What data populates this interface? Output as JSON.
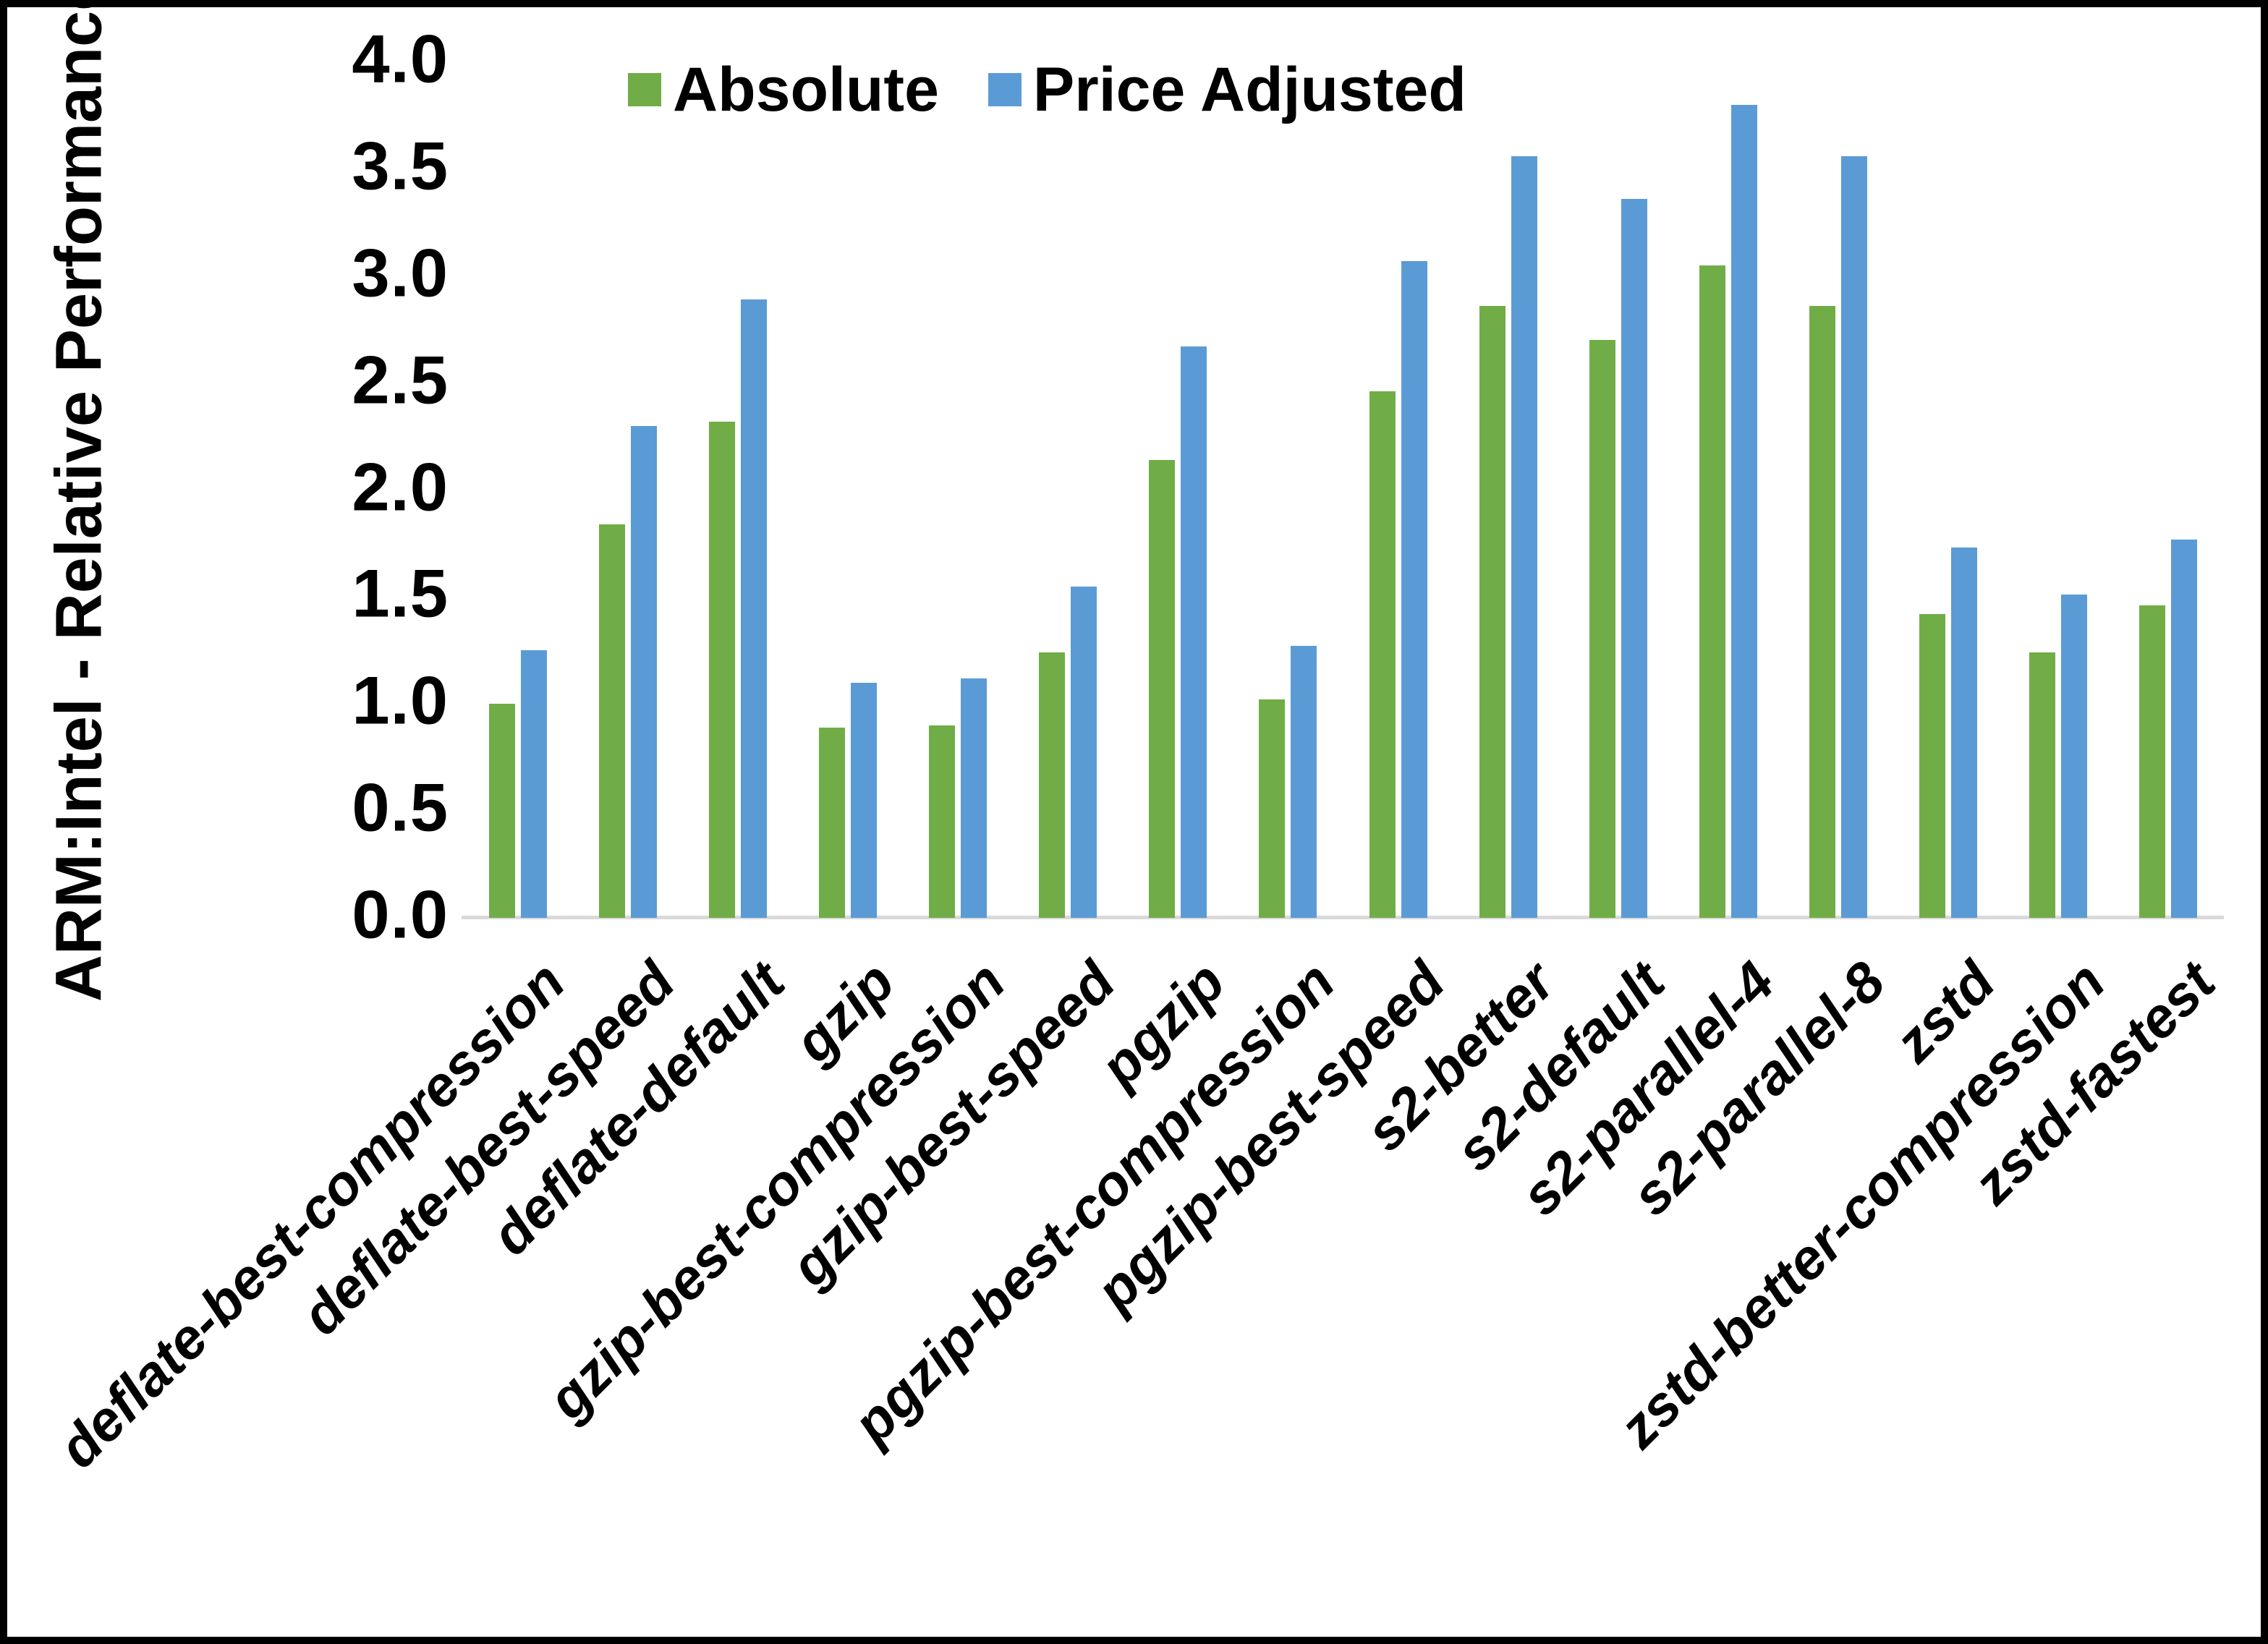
{
  "page": {
    "background": "#ffffff",
    "border_color": "#000000"
  },
  "y_axis": {
    "title": "ARM:Intel - Relative Performance",
    "ticks": [
      "4.0",
      "3.5",
      "3.0",
      "2.5",
      "2.0",
      "1.5",
      "1.0",
      "0.5",
      "0.0"
    ]
  },
  "legend": {
    "items": [
      {
        "label": "Absolute",
        "color": "#70AD47"
      },
      {
        "label": "Price Adjusted",
        "color": "#5B9BD5"
      }
    ]
  },
  "colors": {
    "axis_line": "#D9D9D9",
    "text": "#000000",
    "absolute": "#70AD47",
    "price_adjusted": "#5B9BD5"
  },
  "chart_data": {
    "type": "bar",
    "title": "",
    "xlabel": "",
    "ylabel": "ARM:Intel - Relative Performance",
    "ylim": [
      0,
      4
    ],
    "y_tick_step": 0.5,
    "grid": false,
    "legend_position": "top",
    "categories": [
      "deflate-best-compression",
      "deflate-best-speed",
      "deflate-default",
      "gzip",
      "gzip-best-compression",
      "gzip-best-speed",
      "pgzip",
      "pgzip-best-compression",
      "pgzip-best-speed",
      "s2-better",
      "s2-default",
      "s2-parallel-4",
      "s2-parallel-8",
      "zstd",
      "zstd-better-compression",
      "zstd-fastest"
    ],
    "series": [
      {
        "name": "Absolute",
        "color": "#70AD47",
        "values": [
          1.0,
          1.84,
          2.32,
          0.89,
          0.9,
          1.24,
          2.14,
          1.02,
          2.46,
          2.86,
          2.7,
          3.05,
          2.86,
          1.42,
          1.24,
          1.46
        ]
      },
      {
        "name": "Price Adjusted",
        "color": "#5B9BD5",
        "values": [
          1.25,
          2.3,
          2.89,
          1.1,
          1.12,
          1.55,
          2.67,
          1.27,
          3.07,
          3.56,
          3.36,
          3.8,
          3.56,
          1.73,
          1.51,
          1.77
        ]
      }
    ]
  }
}
